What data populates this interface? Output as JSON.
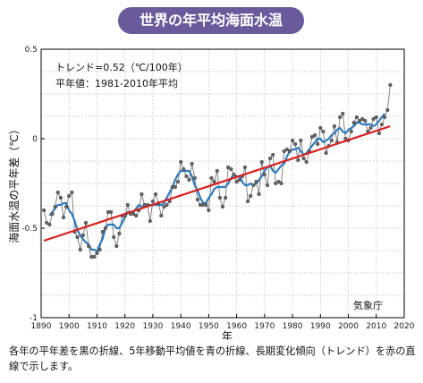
{
  "title": "世界の年平均海面水温",
  "annotations": {
    "trend": "トレンド=0.52（℃/100年）",
    "baseline": "平年値：1981-2010年平均",
    "source": "気象庁"
  },
  "caption": "各年の平年差を黒の折線、5年移動平均値を青の折線、長期変化傾向（トレンド）を赤の直線で示します。",
  "colors": {
    "annual": "#555555",
    "moving_avg": "#2b7ac0",
    "trend": "#d92020",
    "title_bg": "#6a5a9c"
  },
  "chart_data": {
    "type": "line",
    "xlabel": "年",
    "ylabel": "海面水温の平年差（℃）",
    "xlim": [
      1890,
      2020
    ],
    "ylim": [
      -1,
      0.5
    ],
    "xticks": [
      1890,
      1900,
      1910,
      1920,
      1930,
      1940,
      1950,
      1960,
      1970,
      1980,
      1990,
      2000,
      2010,
      2020
    ],
    "yticks": [
      0.5,
      0,
      -0.5,
      -1
    ],
    "ytick_labels": [
      "0.5",
      "0",
      "-0.5",
      "-1"
    ],
    "grid": true,
    "series": [
      {
        "key": "annual",
        "x": [
          1891,
          1892,
          1893,
          1894,
          1895,
          1896,
          1897,
          1898,
          1899,
          1900,
          1901,
          1902,
          1903,
          1904,
          1905,
          1906,
          1907,
          1908,
          1909,
          1910,
          1911,
          1912,
          1913,
          1914,
          1915,
          1916,
          1917,
          1918,
          1919,
          1920,
          1921,
          1922,
          1923,
          1924,
          1925,
          1926,
          1927,
          1928,
          1929,
          1930,
          1931,
          1932,
          1933,
          1934,
          1935,
          1936,
          1937,
          1938,
          1939,
          1940,
          1941,
          1942,
          1943,
          1944,
          1945,
          1946,
          1947,
          1948,
          1949,
          1950,
          1951,
          1952,
          1953,
          1954,
          1955,
          1956,
          1957,
          1958,
          1959,
          1960,
          1961,
          1962,
          1963,
          1964,
          1965,
          1966,
          1967,
          1968,
          1969,
          1970,
          1971,
          1972,
          1973,
          1974,
          1975,
          1976,
          1977,
          1978,
          1979,
          1980,
          1981,
          1982,
          1983,
          1984,
          1985,
          1986,
          1987,
          1988,
          1989,
          1990,
          1991,
          1992,
          1993,
          1994,
          1995,
          1996,
          1997,
          1998,
          1999,
          2000,
          2001,
          2002,
          2003,
          2004,
          2005,
          2006,
          2007,
          2008,
          2009,
          2010,
          2011,
          2012,
          2013,
          2014,
          2015
        ],
        "y": [
          -0.4,
          -0.47,
          -0.48,
          -0.42,
          -0.38,
          -0.3,
          -0.33,
          -0.44,
          -0.38,
          -0.32,
          -0.3,
          -0.52,
          -0.55,
          -0.62,
          -0.54,
          -0.47,
          -0.6,
          -0.66,
          -0.66,
          -0.64,
          -0.62,
          -0.52,
          -0.5,
          -0.41,
          -0.41,
          -0.55,
          -0.6,
          -0.53,
          -0.43,
          -0.43,
          -0.37,
          -0.42,
          -0.42,
          -0.43,
          -0.4,
          -0.31,
          -0.37,
          -0.37,
          -0.46,
          -0.35,
          -0.31,
          -0.36,
          -0.43,
          -0.38,
          -0.37,
          -0.35,
          -0.27,
          -0.27,
          -0.24,
          -0.13,
          -0.17,
          -0.21,
          -0.23,
          -0.14,
          -0.22,
          -0.34,
          -0.37,
          -0.37,
          -0.37,
          -0.4,
          -0.22,
          -0.24,
          -0.18,
          -0.33,
          -0.38,
          -0.33,
          -0.16,
          -0.17,
          -0.2,
          -0.24,
          -0.23,
          -0.21,
          -0.16,
          -0.35,
          -0.32,
          -0.26,
          -0.24,
          -0.31,
          -0.13,
          -0.2,
          -0.26,
          -0.11,
          -0.09,
          -0.25,
          -0.24,
          -0.25,
          -0.07,
          -0.06,
          -0.07,
          -0.01,
          -0.03,
          -0.12,
          -0.01,
          -0.11,
          -0.13,
          -0.07,
          0.01,
          0.02,
          -0.03,
          0.06,
          0.04,
          -0.08,
          -0.04,
          -0.01,
          0.07,
          -0.02,
          0.12,
          0.14,
          0.0,
          -0.01,
          0.04,
          0.09,
          0.12,
          0.1,
          0.11,
          0.1,
          0.04,
          0.06,
          0.11,
          0.12,
          0.03,
          0.08,
          0.12,
          0.16,
          0.3
        ]
      },
      {
        "key": "moving_avg",
        "x": [
          1893,
          1894,
          1895,
          1896,
          1897,
          1898,
          1899,
          1900,
          1901,
          1902,
          1903,
          1904,
          1905,
          1906,
          1907,
          1908,
          1909,
          1910,
          1911,
          1912,
          1913,
          1914,
          1915,
          1916,
          1917,
          1918,
          1919,
          1920,
          1921,
          1922,
          1923,
          1924,
          1925,
          1926,
          1927,
          1928,
          1929,
          1930,
          1931,
          1932,
          1933,
          1934,
          1935,
          1936,
          1937,
          1938,
          1939,
          1940,
          1941,
          1942,
          1943,
          1944,
          1945,
          1946,
          1947,
          1948,
          1949,
          1950,
          1951,
          1952,
          1953,
          1954,
          1955,
          1956,
          1957,
          1958,
          1959,
          1960,
          1961,
          1962,
          1963,
          1964,
          1965,
          1966,
          1967,
          1968,
          1969,
          1970,
          1971,
          1972,
          1973,
          1974,
          1975,
          1976,
          1977,
          1978,
          1979,
          1980,
          1981,
          1982,
          1983,
          1984,
          1985,
          1986,
          1987,
          1988,
          1989,
          1990,
          1991,
          1992,
          1993,
          1994,
          1995,
          1996,
          1997,
          1998,
          1999,
          2000,
          2001,
          2002,
          2003,
          2004,
          2005,
          2006,
          2007,
          2008,
          2009,
          2010,
          2011,
          2012,
          2013
        ],
        "y": [
          -0.43,
          -0.41,
          -0.39,
          -0.37,
          -0.37,
          -0.36,
          -0.36,
          -0.4,
          -0.42,
          -0.46,
          -0.51,
          -0.54,
          -0.56,
          -0.58,
          -0.59,
          -0.62,
          -0.62,
          -0.63,
          -0.59,
          -0.56,
          -0.5,
          -0.48,
          -0.48,
          -0.48,
          -0.5,
          -0.5,
          -0.47,
          -0.44,
          -0.41,
          -0.41,
          -0.41,
          -0.39,
          -0.37,
          -0.38,
          -0.38,
          -0.37,
          -0.37,
          -0.37,
          -0.37,
          -0.37,
          -0.37,
          -0.36,
          -0.33,
          -0.3,
          -0.27,
          -0.23,
          -0.2,
          -0.18,
          -0.18,
          -0.18,
          -0.18,
          -0.21,
          -0.26,
          -0.29,
          -0.33,
          -0.36,
          -0.36,
          -0.33,
          -0.31,
          -0.28,
          -0.27,
          -0.27,
          -0.27,
          -0.27,
          -0.25,
          -0.22,
          -0.2,
          -0.21,
          -0.21,
          -0.24,
          -0.26,
          -0.26,
          -0.25,
          -0.26,
          -0.25,
          -0.23,
          -0.21,
          -0.18,
          -0.16,
          -0.15,
          -0.18,
          -0.19,
          -0.17,
          -0.15,
          -0.14,
          -0.1,
          -0.07,
          -0.06,
          -0.06,
          -0.05,
          -0.07,
          -0.09,
          -0.08,
          -0.06,
          -0.04,
          -0.02,
          0.0,
          0.0,
          -0.02,
          -0.01,
          0.0,
          0.02,
          0.03,
          0.05,
          0.06,
          0.04,
          0.03,
          0.05,
          0.06,
          0.07,
          0.09,
          0.09,
          0.08,
          0.08,
          0.08,
          0.08,
          0.07,
          0.08,
          0.1,
          0.12,
          0.14
        ]
      },
      {
        "key": "trend",
        "x": [
          1891,
          2015
        ],
        "y": [
          -0.57,
          0.07
        ]
      }
    ]
  }
}
